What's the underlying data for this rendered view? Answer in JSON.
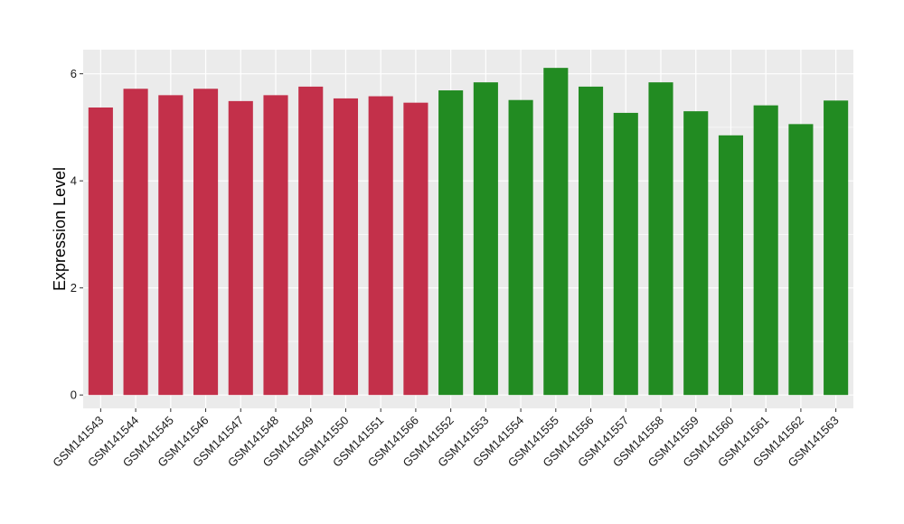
{
  "chart_data": {
    "type": "bar",
    "ylabel": "Expression Level",
    "xlabel": "",
    "ylim": [
      -0.25,
      6.45
    ],
    "yticks": [
      0,
      2,
      4,
      6
    ],
    "grid": true,
    "categories": [
      "GSM141543",
      "GSM141544",
      "GSM141545",
      "GSM141546",
      "GSM141547",
      "GSM141548",
      "GSM141549",
      "GSM141550",
      "GSM141551",
      "GSM141566",
      "GSM141552",
      "GSM141553",
      "GSM141554",
      "GSM141555",
      "GSM141556",
      "GSM141557",
      "GSM141558",
      "GSM141559",
      "GSM141560",
      "GSM141561",
      "GSM141562",
      "GSM141563"
    ],
    "values": [
      5.37,
      5.72,
      5.6,
      5.72,
      5.49,
      5.6,
      5.76,
      5.54,
      5.58,
      5.46,
      5.69,
      5.84,
      5.51,
      6.11,
      5.76,
      5.27,
      5.84,
      5.3,
      4.85,
      5.41,
      5.06,
      5.5
    ],
    "bar_colors": [
      "#C3304A",
      "#C3304A",
      "#C3304A",
      "#C3304A",
      "#C3304A",
      "#C3304A",
      "#C3304A",
      "#C3304A",
      "#C3304A",
      "#C3304A",
      "#228B22",
      "#228B22",
      "#228B22",
      "#228B22",
      "#228B22",
      "#228B22",
      "#228B22",
      "#228B22",
      "#228B22",
      "#228B22",
      "#228B22",
      "#228B22"
    ],
    "panel_background": "#EBEBEB",
    "gridline_color": "#FFFFFF"
  }
}
